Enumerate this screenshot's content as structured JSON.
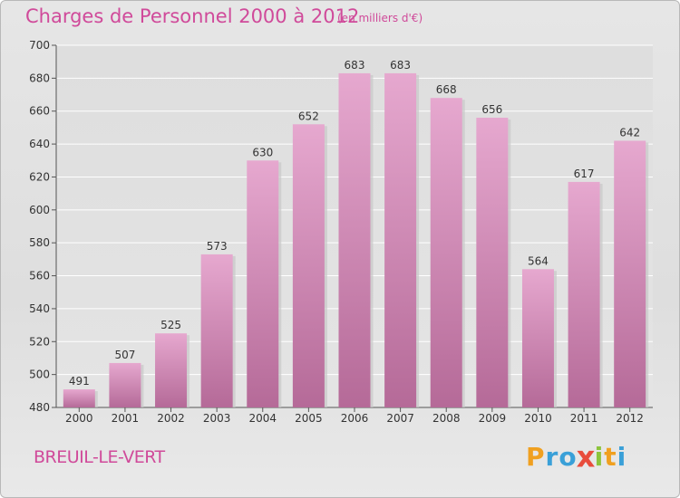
{
  "header": {
    "title": "Charges de Personnel 2000 à 2012",
    "subtitle": "(en milliers d'€)"
  },
  "footer": {
    "city": "BREUIL-LE-VERT",
    "logo_letters": [
      "P",
      "r",
      "o",
      "x",
      "i",
      "t",
      "i"
    ],
    "logo_colors": [
      "#f0a020",
      "#3aa0d8",
      "#3aa0d8",
      "#e84c3c",
      "#8cc43c",
      "#f0a020",
      "#3aa0d8"
    ]
  },
  "colors": {
    "bar_top": "#e6a8cf",
    "bar_bottom": "#b56a98",
    "text_accent": "#d04a9a"
  },
  "chart_data": {
    "type": "bar",
    "categories": [
      "2000",
      "2001",
      "2002",
      "2003",
      "2004",
      "2005",
      "2006",
      "2007",
      "2008",
      "2009",
      "2010",
      "2011",
      "2012"
    ],
    "values": [
      491,
      507,
      525,
      573,
      630,
      652,
      683,
      683,
      668,
      656,
      564,
      617,
      642
    ],
    "ylim": [
      480,
      700
    ],
    "yticks": [
      480,
      500,
      520,
      540,
      560,
      580,
      600,
      620,
      640,
      660,
      680,
      700
    ],
    "grid": true
  }
}
